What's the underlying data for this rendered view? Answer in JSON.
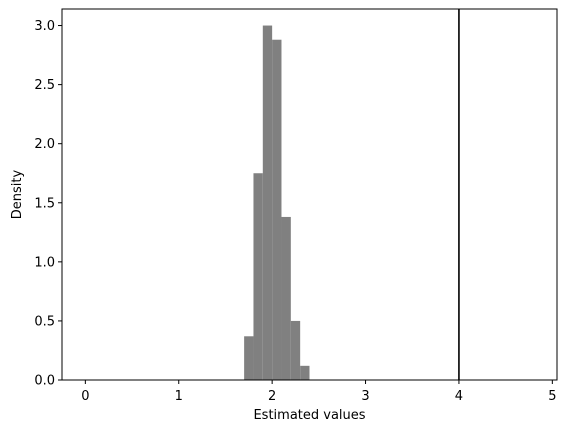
{
  "chart_data": {
    "type": "bar",
    "subtype": "histogram",
    "xlabel": "Estimated values",
    "ylabel": "Density",
    "xlim": [
      -0.25,
      5.05
    ],
    "ylim": [
      0,
      3.14
    ],
    "xticks": [
      0,
      1,
      2,
      3,
      4,
      5
    ],
    "yticks": [
      0.0,
      0.5,
      1.0,
      1.5,
      2.0,
      2.5,
      3.0
    ],
    "ytick_labels": [
      "0.0",
      "0.5",
      "1.0",
      "1.5",
      "2.0",
      "2.5",
      "3.0"
    ],
    "grid": false,
    "bar_color": "#808080",
    "bins": [
      {
        "x0": 1.7,
        "x1": 1.8,
        "density": 0.37
      },
      {
        "x0": 1.8,
        "x1": 1.9,
        "density": 1.75
      },
      {
        "x0": 1.9,
        "x1": 2.0,
        "density": 3.0
      },
      {
        "x0": 2.0,
        "x1": 2.1,
        "density": 2.88
      },
      {
        "x0": 2.1,
        "x1": 2.2,
        "density": 1.38
      },
      {
        "x0": 2.2,
        "x1": 2.3,
        "density": 0.5
      },
      {
        "x0": 2.3,
        "x1": 2.4,
        "density": 0.12
      }
    ],
    "vline": {
      "x": 4.0,
      "color": "#000000"
    }
  }
}
